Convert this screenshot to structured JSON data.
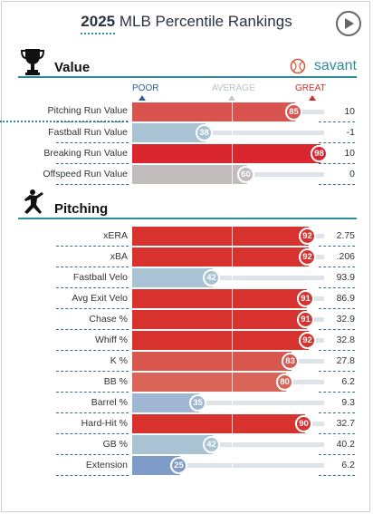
{
  "header": {
    "year": "2025",
    "title_rest": " MLB Percentile Rankings"
  },
  "scale": {
    "poor": "POOR",
    "average": "AVERAGE",
    "great": "GREAT"
  },
  "value_section": {
    "title": "Value",
    "brand": "savant",
    "rows": [
      {
        "metric": "Pitching Run Value",
        "percentile": 85,
        "value": "10",
        "color": "#d9534f"
      },
      {
        "metric": "Fastball Run Value",
        "percentile": 38,
        "value": "-1",
        "color": "#a9c2d4"
      },
      {
        "metric": "Breaking Run Value",
        "percentile": 98,
        "value": "10",
        "color": "#d9262f"
      },
      {
        "metric": "Offspeed Run Value",
        "percentile": 60,
        "value": "0",
        "color": "#c2bdbc"
      }
    ]
  },
  "pitching_section": {
    "title": "Pitching",
    "rows": [
      {
        "metric": "xERA",
        "percentile": 92,
        "value": "2.75",
        "color": "#d8322f"
      },
      {
        "metric": "xBA",
        "percentile": 92,
        "value": ".206",
        "color": "#d8322f"
      },
      {
        "metric": "Fastball Velo",
        "percentile": 42,
        "value": "93.9",
        "color": "#a9c2d4"
      },
      {
        "metric": "Avg Exit Velo",
        "percentile": 91,
        "value": "86.9",
        "color": "#d8322f"
      },
      {
        "metric": "Chase %",
        "percentile": 91,
        "value": "32.9",
        "color": "#d8322f"
      },
      {
        "metric": "Whiff %",
        "percentile": 92,
        "value": "32.8",
        "color": "#d8322f"
      },
      {
        "metric": "K %",
        "percentile": 83,
        "value": "27.8",
        "color": "#d9574e"
      },
      {
        "metric": "BB %",
        "percentile": 80,
        "value": "6.2",
        "color": "#da6458"
      },
      {
        "metric": "Barrel %",
        "percentile": 35,
        "value": "9.3",
        "color": "#9fb7d3"
      },
      {
        "metric": "Hard-Hit %",
        "percentile": 90,
        "value": "32.7",
        "color": "#d8322f"
      },
      {
        "metric": "GB %",
        "percentile": 42,
        "value": "40.2",
        "color": "#a9c2d4"
      },
      {
        "metric": "Extension",
        "percentile": 25,
        "value": "6.2",
        "color": "#7f9cc9"
      }
    ]
  }
}
